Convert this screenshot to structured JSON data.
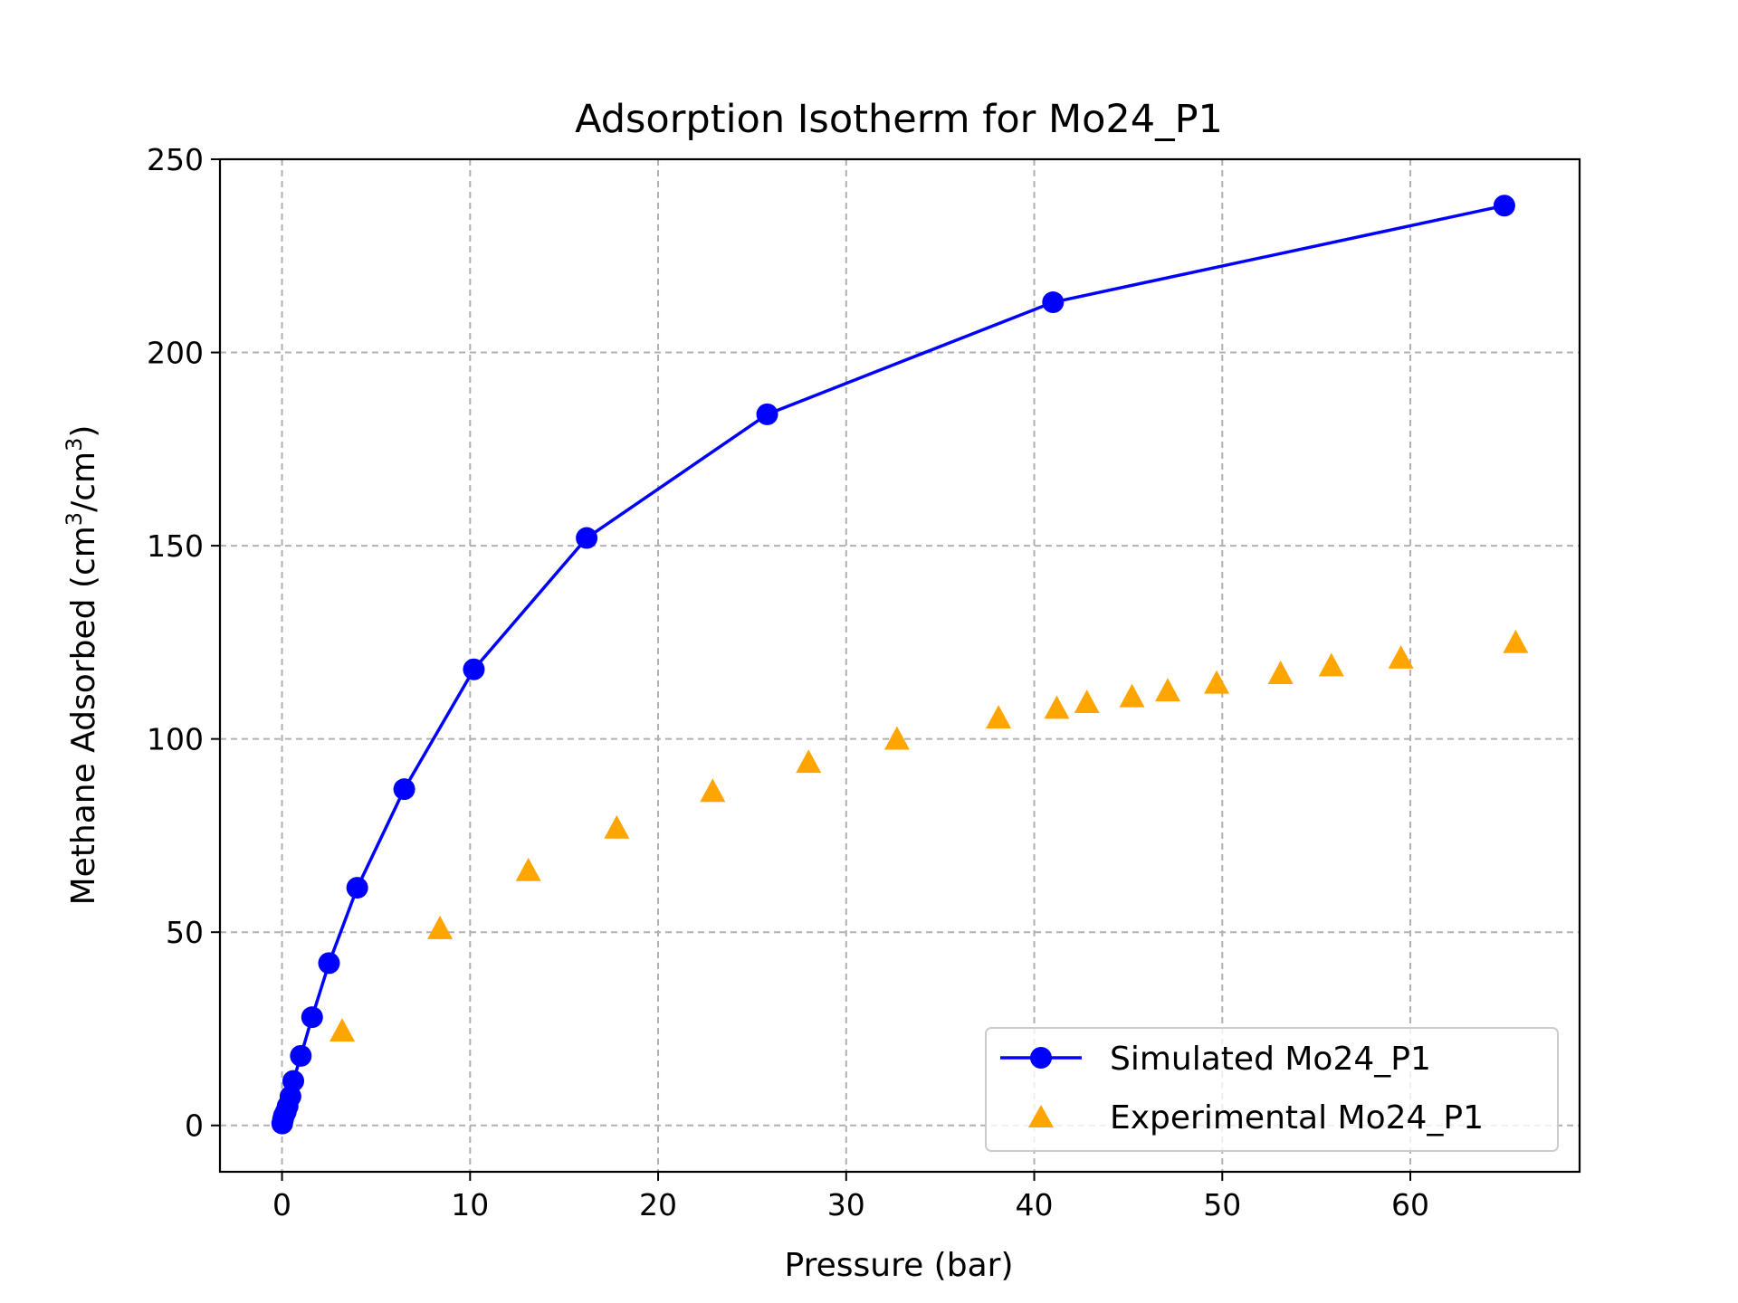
{
  "chart_data": {
    "type": "scatter",
    "title": "Adsorption Isotherm for Mo24_P1",
    "xlabel": "Pressure (bar)",
    "ylabel": "Methane Adsorbed (cm³/cm³)",
    "ylabel_parts": {
      "prefix": "Methane Adsorbed (cm",
      "sup1": "3",
      "middle": "/cm",
      "sup2": "3",
      "suffix": ")"
    },
    "xlim": [
      -3.3,
      69
    ],
    "ylim": [
      -12,
      250
    ],
    "xticks": [
      0,
      10,
      20,
      30,
      40,
      50,
      60
    ],
    "yticks": [
      0,
      50,
      100,
      150,
      200,
      250
    ],
    "grid": true,
    "legend_position": "lower-right",
    "series": [
      {
        "name": "Simulated Mo24_P1",
        "style": "line-marker",
        "marker": "circle",
        "color": "#0000ff",
        "x": [
          0.01,
          0.05,
          0.1,
          0.2,
          0.3,
          0.45,
          0.6,
          1.0,
          1.6,
          2.5,
          4.0,
          6.5,
          10.2,
          16.2,
          25.8,
          41.0,
          65.0
        ],
        "y": [
          0.5,
          1.5,
          2.5,
          3.5,
          5,
          7.5,
          11.5,
          18,
          28,
          42,
          61.5,
          87,
          118,
          152,
          184,
          213,
          238
        ]
      },
      {
        "name": "Experimental Mo24_P1",
        "style": "marker",
        "marker": "triangle",
        "color": "#ffa500",
        "x": [
          3.2,
          8.4,
          13.1,
          17.8,
          22.9,
          28.0,
          32.7,
          38.1,
          41.2,
          42.8,
          45.2,
          47.1,
          49.7,
          53.1,
          55.8,
          59.5,
          65.6
        ],
        "y": [
          24.5,
          51,
          66,
          77,
          86.5,
          94,
          100,
          105.5,
          108,
          109.5,
          111,
          112.5,
          114.5,
          117,
          119,
          121,
          125
        ]
      }
    ]
  }
}
